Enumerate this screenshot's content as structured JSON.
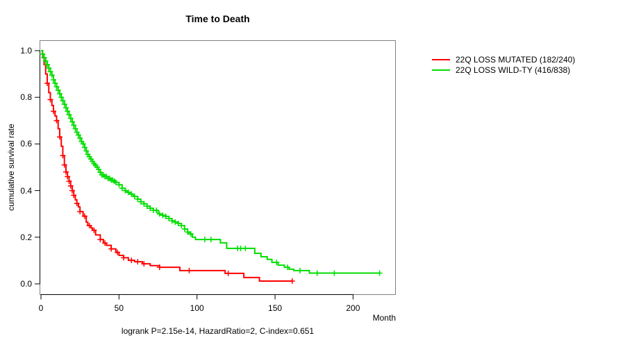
{
  "title": "Time to Death",
  "footer": "logrank P=2.15e-14, HazardRatio=2, C-index=0.651",
  "axes": {
    "x_label": "Month",
    "y_label": "cumulative survival rate",
    "x_ticks": [
      "0",
      "50",
      "100",
      "150",
      "200"
    ],
    "y_ticks": [
      "1.0",
      "0.8",
      "0.6",
      "0.4",
      "0.2",
      "0.0"
    ],
    "box_color": "#808080",
    "axis_color": "#000000"
  },
  "legend": {
    "items": [
      {
        "label": "22Q LOSS MUTATED (182/240)",
        "color": "#ff0000"
      },
      {
        "label": "22Q LOSS WILD-TY (416/838)",
        "color": "#00dd00"
      }
    ]
  },
  "chart_data": {
    "type": "line",
    "subtype": "kaplan-meier-step",
    "title": "Time to Death",
    "xlabel": "Month",
    "ylabel": "cumulative survival rate",
    "xlim": [
      0,
      228
    ],
    "ylim": [
      0.0,
      1.0
    ],
    "grid": false,
    "legend_position": "right-outside",
    "annotation": "logrank P=2.15e-14, HazardRatio=2, C-index=0.651",
    "series": [
      {
        "name": "22Q LOSS MUTATED (182/240)",
        "events_over_n": "182/240",
        "color": "#ff0000",
        "steps": [
          [
            0,
            1.0
          ],
          [
            1,
            0.97
          ],
          [
            2,
            0.94
          ],
          [
            3,
            0.9
          ],
          [
            4,
            0.86
          ],
          [
            5,
            0.82
          ],
          [
            6,
            0.79
          ],
          [
            7,
            0.765
          ],
          [
            8,
            0.74
          ],
          [
            9,
            0.72
          ],
          [
            10,
            0.7
          ],
          [
            11,
            0.665
          ],
          [
            12,
            0.63
          ],
          [
            13,
            0.59
          ],
          [
            14,
            0.55
          ],
          [
            15,
            0.51
          ],
          [
            16,
            0.48
          ],
          [
            17,
            0.46
          ],
          [
            18,
            0.44
          ],
          [
            19,
            0.42
          ],
          [
            20,
            0.4
          ],
          [
            21,
            0.38
          ],
          [
            22,
            0.36
          ],
          [
            23,
            0.345
          ],
          [
            24,
            0.33
          ],
          [
            25,
            0.31
          ],
          [
            27,
            0.29
          ],
          [
            29,
            0.265
          ],
          [
            30,
            0.25
          ],
          [
            32,
            0.24
          ],
          [
            33,
            0.23
          ],
          [
            35,
            0.21
          ],
          [
            38,
            0.19
          ],
          [
            40,
            0.175
          ],
          [
            42,
            0.165
          ],
          [
            45,
            0.15
          ],
          [
            48,
            0.135
          ],
          [
            50,
            0.122
          ],
          [
            53,
            0.112
          ],
          [
            56,
            0.101
          ],
          [
            60,
            0.095
          ],
          [
            65,
            0.086
          ],
          [
            70,
            0.078
          ],
          [
            76,
            0.071
          ],
          [
            89,
            0.057
          ],
          [
            118,
            0.045
          ],
          [
            130,
            0.027
          ],
          [
            140,
            0.012
          ],
          [
            161,
            0.012
          ]
        ],
        "censor_months": [
          4,
          6,
          8,
          10,
          12,
          14,
          15,
          16,
          17,
          18,
          19,
          20,
          21,
          23,
          25,
          28,
          31,
          34,
          38,
          41,
          45,
          49,
          53,
          58,
          62,
          66,
          76,
          95,
          120,
          161
        ]
      },
      {
        "name": "22Q LOSS WILD-TY (416/838)",
        "events_over_n": "416/838",
        "color": "#00dd00",
        "steps": [
          [
            0,
            1.0
          ],
          [
            1,
            0.985
          ],
          [
            2,
            0.97
          ],
          [
            3,
            0.955
          ],
          [
            4,
            0.94
          ],
          [
            5,
            0.925
          ],
          [
            6,
            0.91
          ],
          [
            7,
            0.895
          ],
          [
            8,
            0.875
          ],
          [
            9,
            0.86
          ],
          [
            10,
            0.845
          ],
          [
            11,
            0.83
          ],
          [
            12,
            0.815
          ],
          [
            13,
            0.8
          ],
          [
            14,
            0.785
          ],
          [
            15,
            0.77
          ],
          [
            16,
            0.755
          ],
          [
            17,
            0.74
          ],
          [
            18,
            0.725
          ],
          [
            19,
            0.71
          ],
          [
            20,
            0.695
          ],
          [
            21,
            0.68
          ],
          [
            22,
            0.665
          ],
          [
            23,
            0.65
          ],
          [
            24,
            0.638
          ],
          [
            25,
            0.625
          ],
          [
            26,
            0.61
          ],
          [
            27,
            0.6
          ],
          [
            28,
            0.585
          ],
          [
            29,
            0.57
          ],
          [
            30,
            0.555
          ],
          [
            31,
            0.545
          ],
          [
            32,
            0.535
          ],
          [
            33,
            0.525
          ],
          [
            34,
            0.515
          ],
          [
            35,
            0.508
          ],
          [
            36,
            0.5
          ],
          [
            37,
            0.49
          ],
          [
            38,
            0.478
          ],
          [
            39,
            0.467
          ],
          [
            41,
            0.46
          ],
          [
            43,
            0.452
          ],
          [
            45,
            0.445
          ],
          [
            47,
            0.44
          ],
          [
            48,
            0.435
          ],
          [
            50,
            0.425
          ],
          [
            52,
            0.41
          ],
          [
            54,
            0.4
          ],
          [
            55,
            0.393
          ],
          [
            57,
            0.385
          ],
          [
            59,
            0.375
          ],
          [
            62,
            0.363
          ],
          [
            64,
            0.352
          ],
          [
            66,
            0.343
          ],
          [
            68,
            0.333
          ],
          [
            70,
            0.324
          ],
          [
            72,
            0.315
          ],
          [
            75,
            0.3
          ],
          [
            78,
            0.294
          ],
          [
            80,
            0.289
          ],
          [
            82,
            0.28
          ],
          [
            84,
            0.27
          ],
          [
            86,
            0.265
          ],
          [
            88,
            0.259
          ],
          [
            90,
            0.25
          ],
          [
            92,
            0.235
          ],
          [
            94,
            0.222
          ],
          [
            95,
            0.214
          ],
          [
            97,
            0.2
          ],
          [
            99,
            0.19
          ],
          [
            115,
            0.176
          ],
          [
            119,
            0.152
          ],
          [
            137,
            0.131
          ],
          [
            141,
            0.116
          ],
          [
            145,
            0.105
          ],
          [
            148,
            0.092
          ],
          [
            152,
            0.08
          ],
          [
            156,
            0.071
          ],
          [
            159,
            0.063
          ],
          [
            162,
            0.057
          ],
          [
            172,
            0.046
          ],
          [
            217,
            0.046
          ]
        ],
        "censor_months": [
          1,
          2,
          3,
          4,
          5,
          6,
          7,
          8,
          9,
          10,
          11,
          12,
          13,
          14,
          15,
          16,
          17,
          18,
          19,
          20,
          21,
          22,
          23,
          24,
          25,
          26,
          27,
          28,
          29,
          30,
          31,
          32,
          33,
          34,
          35,
          36,
          37,
          38,
          39,
          40,
          41,
          42,
          43,
          44,
          45,
          46,
          47,
          48,
          50,
          52,
          54,
          56,
          58,
          60,
          62,
          64,
          66,
          68,
          70,
          72,
          74,
          76,
          78,
          80,
          82,
          84,
          86,
          88,
          90,
          92,
          94,
          96,
          105,
          109,
          126,
          128,
          131,
          151,
          158,
          166,
          177,
          188,
          217
        ]
      }
    ]
  }
}
